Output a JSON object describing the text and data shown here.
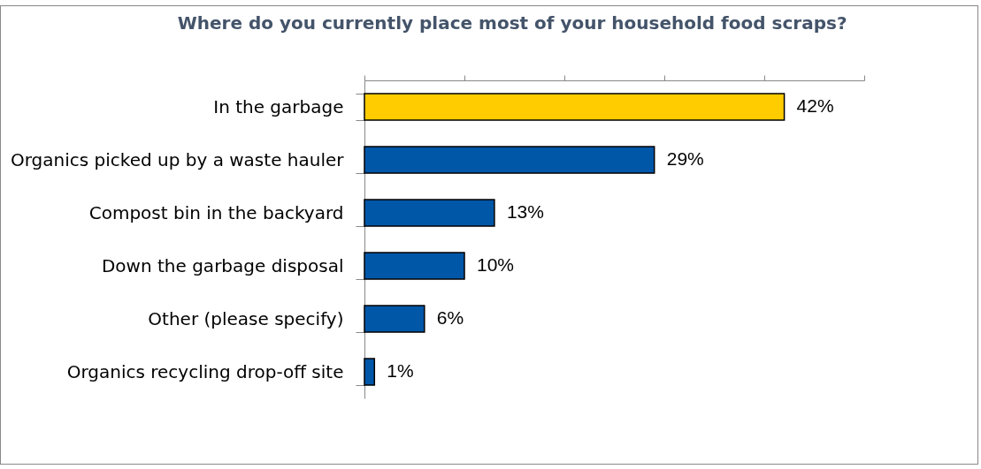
{
  "chart_data": {
    "type": "bar",
    "orientation": "horizontal",
    "title": "Where do you currently place most of your household food scraps?",
    "categories": [
      "In the garbage",
      "Organics picked up by a waste hauler",
      "Compost bin in the backyard",
      "Down the garbage disposal",
      "Other (please specify)",
      "Organics recycling drop-off site"
    ],
    "values": [
      42,
      29,
      13,
      10,
      6,
      1
    ],
    "value_labels": [
      "42%",
      "29%",
      "13%",
      "10%",
      "6%",
      "1%"
    ],
    "colors": [
      "#ffcc00",
      "#0057a8",
      "#0057a8",
      "#0057a8",
      "#0057a8",
      "#0057a8"
    ],
    "xlim": [
      0,
      50
    ],
    "xticks": [
      {
        "value": 0,
        "label": null
      },
      {
        "value": 10,
        "label": null
      },
      {
        "value": 20,
        "label": null
      },
      {
        "value": 30,
        "label": null
      },
      {
        "value": 40,
        "label": null
      },
      {
        "value": 50,
        "label": null
      }
    ],
    "tick_labels": "y",
    "grid": false
  }
}
